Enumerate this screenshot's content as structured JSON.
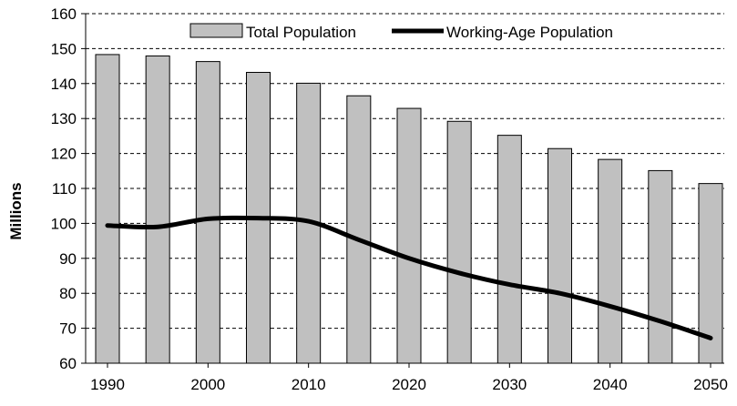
{
  "chart_data": {
    "type": "bar",
    "title": "",
    "xlabel": "",
    "ylabel": "Millions",
    "ylim": [
      60,
      160
    ],
    "yticks": [
      60,
      70,
      80,
      90,
      100,
      110,
      120,
      130,
      140,
      150,
      160
    ],
    "x": [
      1990,
      1995,
      2000,
      2005,
      2010,
      2015,
      2020,
      2025,
      2030,
      2035,
      2040,
      2045,
      2050
    ],
    "xtick_labels": [
      "1990",
      "2000",
      "2010",
      "2020",
      "2030",
      "2040",
      "2050"
    ],
    "grid": "horizontal dashed",
    "legend_position": "top",
    "series": [
      {
        "name": "Total Population",
        "kind": "bar",
        "color": "#c0c0c0",
        "values": [
          148.3,
          147.9,
          146.3,
          143.2,
          140.1,
          136.5,
          132.9,
          129.2,
          125.2,
          121.4,
          118.3,
          115.1,
          111.4
        ]
      },
      {
        "name": "Working-Age Population",
        "kind": "line",
        "color": "#000000",
        "values": [
          99.4,
          99.0,
          101.3,
          101.5,
          100.6,
          95.3,
          90.0,
          85.8,
          82.5,
          80.0,
          76.3,
          72.0,
          67.2
        ]
      }
    ]
  }
}
